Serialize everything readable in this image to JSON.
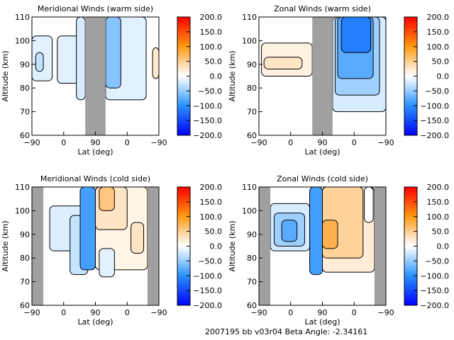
{
  "footer": "2007195 bb v03r04   Beta Angle: -2.34161",
  "chart_data": [
    {
      "type": "heatmap",
      "title": "Meridional Winds (warm side)",
      "xlabel": "Lat (deg)",
      "ylabel": "Altitude (km)",
      "xticks": [
        "-90",
        "0",
        "90",
        "0",
        "-90"
      ],
      "yticks": [
        "60",
        "70",
        "80",
        "90",
        "100",
        "110"
      ],
      "ylim": [
        60,
        110
      ],
      "colorbar": {
        "ticks": [
          "200.0",
          "150.0",
          "100.0",
          "50.0",
          "0.0",
          "-50.0",
          "-100.0",
          "-150.0",
          "-200.0"
        ],
        "range": [
          -200,
          200
        ]
      },
      "gaps": [
        [
          0.42,
          0.58
        ]
      ],
      "blobs": [
        {
          "x": [
            0.0,
            0.16
          ],
          "y": [
            83,
            102
          ],
          "v": -30
        },
        {
          "x": [
            0.03,
            0.09
          ],
          "y": [
            87,
            95
          ],
          "v": -60
        },
        {
          "x": [
            0.2,
            0.4
          ],
          "y": [
            82,
            102
          ],
          "v": -30
        },
        {
          "x": [
            0.35,
            0.42
          ],
          "y": [
            75,
            110
          ],
          "v": -40
        },
        {
          "x": [
            0.52,
            0.58
          ],
          "y": [
            86,
            97
          ],
          "v": -40
        },
        {
          "x": [
            0.58,
            0.9
          ],
          "y": [
            75,
            110
          ],
          "v": -30
        },
        {
          "x": [
            0.58,
            0.7
          ],
          "y": [
            80,
            110
          ],
          "v": -90
        },
        {
          "x": [
            0.95,
            1.0
          ],
          "y": [
            84,
            97
          ],
          "v": 50
        }
      ]
    },
    {
      "type": "heatmap",
      "title": "Zonal Winds (warm side)",
      "xlabel": "Lat (deg)",
      "ylabel": "Altitude (km)",
      "xticks": [
        "-90",
        "0",
        "90",
        "0",
        "-90"
      ],
      "yticks": [
        "60",
        "70",
        "80",
        "90",
        "100",
        "110"
      ],
      "ylim": [
        60,
        110
      ],
      "colorbar": {
        "ticks": [
          "200.0",
          "150.0",
          "100.0",
          "50.0",
          "0.0",
          "-50.0",
          "-100.0",
          "-150.0",
          "-200.0"
        ],
        "range": [
          -200,
          200
        ]
      },
      "gaps": [
        [
          0.42,
          0.58
        ]
      ],
      "blobs": [
        {
          "x": [
            0.02,
            0.42
          ],
          "y": [
            85,
            99
          ],
          "v": 30
        },
        {
          "x": [
            0.04,
            0.34
          ],
          "y": [
            88,
            93
          ],
          "v": 60
        },
        {
          "x": [
            0.58,
            1.0
          ],
          "y": [
            70,
            110
          ],
          "v": -40
        },
        {
          "x": [
            0.6,
            0.95
          ],
          "y": [
            77,
            110
          ],
          "v": -80
        },
        {
          "x": [
            0.62,
            0.9
          ],
          "y": [
            84,
            110
          ],
          "v": -110
        },
        {
          "x": [
            0.65,
            0.88
          ],
          "y": [
            95,
            110
          ],
          "v": -140
        }
      ]
    },
    {
      "type": "heatmap",
      "title": "Meridional Winds (cold side)",
      "xlabel": "Lat (deg)",
      "ylabel": "Altitude (km)",
      "xticks": [
        "-90",
        "0",
        "90",
        "0",
        "-90"
      ],
      "yticks": [
        "60",
        "70",
        "80",
        "90",
        "100",
        "110"
      ],
      "ylim": [
        60,
        110
      ],
      "colorbar": {
        "ticks": [
          "200.0",
          "150.0",
          "100.0",
          "50.0",
          "0.0",
          "-50.0",
          "-100.0",
          "-150.0",
          "-200.0"
        ],
        "range": [
          -200,
          200
        ]
      },
      "gaps": [
        [
          0.0,
          0.09
        ],
        [
          0.91,
          1.0
        ]
      ],
      "blobs": [
        {
          "x": [
            0.14,
            0.44
          ],
          "y": [
            83,
            102
          ],
          "v": -35
        },
        {
          "x": [
            0.3,
            0.44
          ],
          "y": [
            73,
            98
          ],
          "v": -60
        },
        {
          "x": [
            0.38,
            0.5
          ],
          "y": [
            75,
            110
          ],
          "v": -120
        },
        {
          "x": [
            0.5,
            0.91
          ],
          "y": [
            75,
            110
          ],
          "v": 25
        },
        {
          "x": [
            0.5,
            0.75
          ],
          "y": [
            92,
            110
          ],
          "v": 60
        },
        {
          "x": [
            0.53,
            0.65
          ],
          "y": [
            100,
            110
          ],
          "v": 90
        },
        {
          "x": [
            0.78,
            0.88
          ],
          "y": [
            82,
            95
          ],
          "v": 60
        },
        {
          "x": [
            0.53,
            0.65
          ],
          "y": [
            72,
            84
          ],
          "v": -30
        }
      ]
    },
    {
      "type": "heatmap",
      "title": "Zonal Winds (cold side)",
      "xlabel": "Lat (deg)",
      "ylabel": "Altitude (km)",
      "xticks": [
        "-90",
        "0",
        "90",
        "0",
        "-90"
      ],
      "yticks": [
        "60",
        "70",
        "80",
        "90",
        "100",
        "110"
      ],
      "ylim": [
        60,
        110
      ],
      "colorbar": {
        "ticks": [
          "200.0",
          "150.0",
          "100.0",
          "50.0",
          "0.0",
          "-50.0",
          "-100.0",
          "-150.0",
          "-200.0"
        ],
        "range": [
          -200,
          200
        ]
      },
      "gaps": [
        [
          0.0,
          0.09
        ],
        [
          0.91,
          1.0
        ]
      ],
      "blobs": [
        {
          "x": [
            0.09,
            0.4
          ],
          "y": [
            83,
            103
          ],
          "v": -40
        },
        {
          "x": [
            0.12,
            0.36
          ],
          "y": [
            85,
            99
          ],
          "v": -80
        },
        {
          "x": [
            0.18,
            0.3
          ],
          "y": [
            87,
            96
          ],
          "v": -110
        },
        {
          "x": [
            0.4,
            0.5
          ],
          "y": [
            73,
            110
          ],
          "v": -120
        },
        {
          "x": [
            0.5,
            0.91
          ],
          "y": [
            74,
            110
          ],
          "v": 40
        },
        {
          "x": [
            0.5,
            0.82
          ],
          "y": [
            80,
            110
          ],
          "v": 80
        },
        {
          "x": [
            0.5,
            0.62
          ],
          "y": [
            84,
            96
          ],
          "v": 110
        },
        {
          "x": [
            0.83,
            0.9
          ],
          "y": [
            95,
            110
          ],
          "v": 0
        }
      ]
    }
  ]
}
